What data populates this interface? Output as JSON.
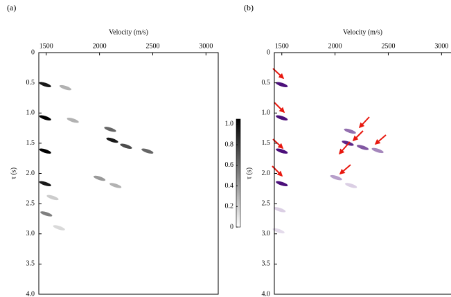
{
  "chart_data": [
    {
      "type": "scatter",
      "panel_label": "(a)",
      "x_label": "Velocity (m/s)",
      "y_label": "τ (s)",
      "color": "#000000",
      "xlim": [
        1430,
        3115
      ],
      "ylim": [
        0,
        4
      ],
      "xticks": [
        1500,
        2000,
        2500,
        3000
      ],
      "yticks": [
        0,
        0.5,
        {
          "value": 1,
          "label": "1.0"
        },
        1.5,
        {
          "value": 2,
          "label": "2.0"
        },
        2.5,
        {
          "value": 3,
          "label": "3.0"
        },
        3.5,
        {
          "value": 4,
          "label": "4.0"
        }
      ],
      "x": [
        1490,
        1490,
        1490,
        1490,
        2100,
        2120,
        2250,
        2450,
        1500,
        1680,
        1750,
        2000,
        2150,
        1560,
        1620
      ],
      "y": [
        0.53,
        1.08,
        1.63,
        2.17,
        1.27,
        1.45,
        1.55,
        1.63,
        2.67,
        0.58,
        1.12,
        2.08,
        2.2,
        2.4,
        2.9
      ],
      "values": [
        0.9,
        1.0,
        1.0,
        0.9,
        0.6,
        0.9,
        0.7,
        0.6,
        0.5,
        0.3,
        0.3,
        0.4,
        0.3,
        0.2,
        0.15
      ],
      "colorbar": {
        "lim": [
          0,
          1.05
        ],
        "ticks": [
          0,
          0.2,
          0.4,
          0.6,
          0.8,
          {
            "value": 1,
            "label": "1.0"
          }
        ]
      }
    },
    {
      "type": "scatter",
      "panel_label": "(b)",
      "x_label": "Velocity (m/s)",
      "y_label": "τ (s)",
      "color": "#4b0f7a",
      "xlim": [
        1430,
        3115
      ],
      "ylim": [
        0,
        4
      ],
      "xticks": [
        1500,
        2000,
        2500,
        3000
      ],
      "yticks": [
        0,
        0.5,
        {
          "value": 1,
          "label": "1.0"
        },
        1.5,
        {
          "value": 2,
          "label": "2.0"
        },
        2.5,
        {
          "value": 3,
          "label": "3.0"
        },
        3.5,
        {
          "value": 4,
          "label": "4.0"
        }
      ],
      "x": [
        1500,
        1500,
        1500,
        1500,
        2140,
        2120,
        2260,
        2400,
        2010,
        2150,
        1480,
        1470
      ],
      "y": [
        0.53,
        1.08,
        1.63,
        2.17,
        1.3,
        1.5,
        1.57,
        1.62,
        2.07,
        2.2,
        2.6,
        2.95
      ],
      "values": [
        1.0,
        1.0,
        1.0,
        1.0,
        0.6,
        0.9,
        0.7,
        0.5,
        0.4,
        0.2,
        0.2,
        0.15
      ]
    }
  ]
}
